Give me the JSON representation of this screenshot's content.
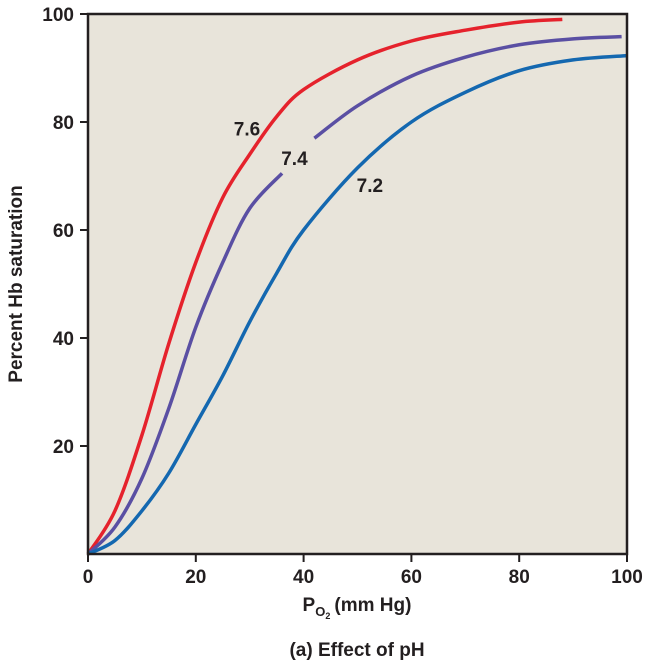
{
  "chart_data": {
    "type": "line",
    "caption": "(a) Effect of pH",
    "xlabel": {
      "main": "P",
      "subscript_main": "O",
      "subscript_num": "2",
      "unit": "(mm Hg)"
    },
    "ylabel": "Percent Hb saturation",
    "xlim": [
      0,
      100
    ],
    "ylim": [
      0,
      100
    ],
    "x_ticks": [
      "0",
      "20",
      "40",
      "60",
      "80",
      "100"
    ],
    "y_ticks": [
      "20",
      "40",
      "60",
      "80",
      "100"
    ],
    "grid": false,
    "background": "#e8e4da",
    "series": [
      {
        "name": "7.6",
        "color": "#e5222c",
        "x": [
          0,
          5,
          10,
          15,
          20,
          25,
          30,
          35,
          40,
          50,
          60,
          70,
          80,
          88
        ],
        "values": [
          0,
          8,
          22,
          39,
          54,
          66,
          74,
          81,
          86,
          91.5,
          95,
          97,
          98.5,
          99
        ]
      },
      {
        "name": "7.4",
        "color": "#5a4fa3",
        "x": [
          0,
          5,
          10,
          15,
          20,
          25,
          30,
          36
        ],
        "values": [
          0,
          5,
          14,
          27,
          42,
          54,
          64,
          70.5
        ]
      },
      {
        "name": "7.4-upper",
        "color": "#5a4fa3",
        "x": [
          42,
          50,
          60,
          70,
          80,
          90,
          99
        ],
        "values": [
          77,
          83,
          88.5,
          92,
          94.3,
          95.4,
          95.8
        ]
      },
      {
        "name": "7.2",
        "color": "#1468b0",
        "x": [
          0,
          5,
          10,
          15,
          20,
          25,
          30,
          35,
          40,
          50,
          60,
          70,
          80,
          90,
          100
        ],
        "values": [
          0,
          2.5,
          8,
          15,
          24,
          33,
          43,
          52,
          60,
          71.5,
          80,
          85.5,
          89.5,
          91.5,
          92.3
        ]
      }
    ],
    "curve_labels": [
      {
        "text": "7.6",
        "x": 29.5,
        "y": 77.5
      },
      {
        "text": "7.4",
        "x": 38.3,
        "y": 72
      },
      {
        "text": "7.2",
        "x": 52.3,
        "y": 67
      }
    ]
  }
}
